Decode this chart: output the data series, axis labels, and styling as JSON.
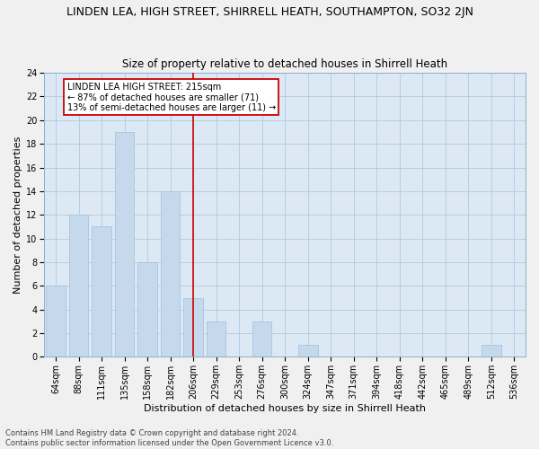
{
  "title": "LINDEN LEA, HIGH STREET, SHIRRELL HEATH, SOUTHAMPTON, SO32 2JN",
  "subtitle": "Size of property relative to detached houses in Shirrell Heath",
  "xlabel": "Distribution of detached houses by size in Shirrell Heath",
  "ylabel": "Number of detached properties",
  "footer_line1": "Contains HM Land Registry data © Crown copyright and database right 2024.",
  "footer_line2": "Contains public sector information licensed under the Open Government Licence v3.0.",
  "categories": [
    "64sqm",
    "88sqm",
    "111sqm",
    "135sqm",
    "158sqm",
    "182sqm",
    "206sqm",
    "229sqm",
    "253sqm",
    "276sqm",
    "300sqm",
    "324sqm",
    "347sqm",
    "371sqm",
    "394sqm",
    "418sqm",
    "442sqm",
    "465sqm",
    "489sqm",
    "512sqm",
    "536sqm"
  ],
  "values": [
    6,
    12,
    11,
    19,
    8,
    14,
    5,
    3,
    0,
    3,
    0,
    1,
    0,
    0,
    0,
    0,
    0,
    0,
    0,
    1,
    0
  ],
  "bar_color": "#c6d9ec",
  "bar_edge_color": "#a8c4dc",
  "grid_color": "#afc9e0",
  "bg_color": "#dce9f5",
  "fig_color": "#f0f0f0",
  "vline_color": "#cc0000",
  "annotation_box_text": "LINDEN LEA HIGH STREET: 215sqm\n← 87% of detached houses are smaller (71)\n13% of semi-detached houses are larger (11) →",
  "annotation_box_color": "#cc0000",
  "ylim": [
    0,
    24
  ],
  "yticks": [
    0,
    2,
    4,
    6,
    8,
    10,
    12,
    14,
    16,
    18,
    20,
    22,
    24
  ],
  "title_fontsize": 9,
  "subtitle_fontsize": 8.5,
  "xlabel_fontsize": 8,
  "ylabel_fontsize": 8,
  "tick_fontsize": 7,
  "annot_fontsize": 7,
  "footer_fontsize": 6
}
